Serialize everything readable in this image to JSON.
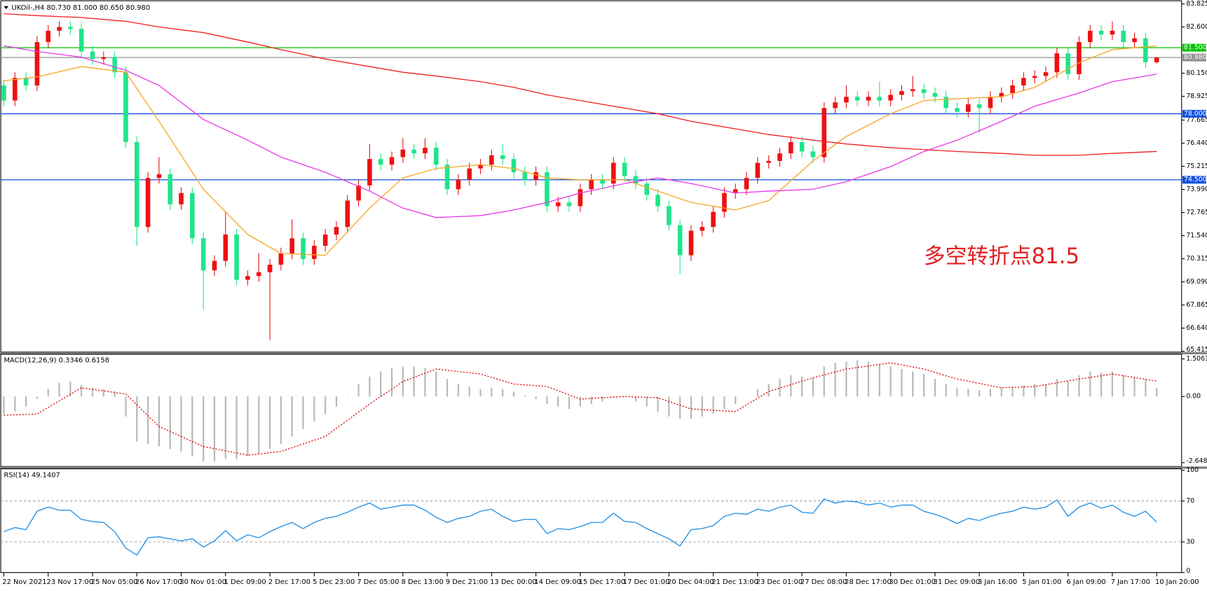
{
  "chart_data": [
    {
      "type": "candlestick",
      "title": "UKOil-,H4  80.730 81.000 80.650 80.980",
      "up_color": "#ee1111",
      "down_color": "#1ee58a",
      "xlim": [
        0,
        104
      ],
      "xticks": [
        {
          "value": 0,
          "label": "22 Nov 2021"
        },
        {
          "value": 4,
          "label": "23 Nov 17:00"
        },
        {
          "value": 8,
          "label": "25 Nov 05:00"
        },
        {
          "value": 12,
          "label": "26 Nov 17:00"
        },
        {
          "value": 16,
          "label": "30 Nov 01:00"
        },
        {
          "value": 20,
          "label": "1 Dec 09:00"
        },
        {
          "value": 24,
          "label": "2 Dec 17:00"
        },
        {
          "value": 28,
          "label": "5 Dec 23:00"
        },
        {
          "value": 32,
          "label": "7 Dec 05:00"
        },
        {
          "value": 36,
          "label": "8 Dec 13:00"
        },
        {
          "value": 40,
          "label": "9 Dec 21:00"
        },
        {
          "value": 44,
          "label": "13 Dec 00:00"
        },
        {
          "value": 48,
          "label": "14 Dec 09:00"
        },
        {
          "value": 52,
          "label": "15 Dec 17:00"
        },
        {
          "value": 56,
          "label": "17 Dec 01:00"
        },
        {
          "value": 60,
          "label": "20 Dec 04:00"
        },
        {
          "value": 64,
          "label": "21 Dec 13:00"
        },
        {
          "value": 68,
          "label": "23 Dec 01:00"
        },
        {
          "value": 72,
          "label": "27 Dec 08:00"
        },
        {
          "value": 76,
          "label": "28 Dec 17:00"
        },
        {
          "value": 80,
          "label": "30 Dec 01:00"
        },
        {
          "value": 84,
          "label": "31 Dec 09:00"
        },
        {
          "value": 88,
          "label": "3 Jan 16:00"
        },
        {
          "value": 92,
          "label": "5 Jan 01:00"
        },
        {
          "value": 96,
          "label": "6 Jan 09:00"
        },
        {
          "value": 100,
          "label": "7 Jan 17:00"
        },
        {
          "value": 104,
          "label": "10 Jan 20:00"
        }
      ],
      "ylim": [
        65.415,
        83.825
      ],
      "yticks": [
        83.825,
        {
          "value": 82.6,
          "label": "82.600"
        },
        {
          "value": 80.15,
          "label": "80.150"
        },
        78.925,
        77.665,
        {
          "value": 76.44,
          "label": "76.440"
        },
        75.215,
        {
          "value": 73.99,
          "label": "73.990"
        },
        72.765,
        {
          "value": 71.54,
          "label": "71.540"
        },
        70.315,
        {
          "value": 69.09,
          "label": "69.090"
        },
        67.865,
        {
          "value": 66.64,
          "label": "66.640"
        },
        65.415
      ],
      "open": [
        79.5,
        78.7,
        79.9,
        79.5,
        81.8,
        82.4,
        82.6,
        82.5,
        81.3,
        80.9,
        81.0,
        80.2,
        76.5,
        72.0,
        74.6,
        74.8,
        73.2,
        73.8,
        71.4,
        69.7,
        70.2,
        71.6,
        69.2,
        69.4,
        69.6,
        70.0,
        70.6,
        71.4,
        70.3,
        71.0,
        71.6,
        72.0,
        73.4,
        74.2,
        75.6,
        75.3,
        75.7,
        76.1,
        75.9,
        76.2,
        75.3,
        74.0,
        74.5,
        75.1,
        75.3,
        75.8,
        75.6,
        74.9,
        74.5,
        74.9,
        73.1,
        73.3,
        73.1,
        74.0,
        74.5,
        74.3,
        75.4,
        74.7,
        74.3,
        73.7,
        73.1,
        72.1,
        70.5,
        71.8,
        72.0,
        72.8,
        73.8,
        74.0,
        74.6,
        75.4,
        75.5,
        75.9,
        76.5,
        76.0,
        75.7,
        78.3,
        78.6,
        78.9,
        78.7,
        78.9,
        78.7,
        79.0,
        79.2,
        79.3,
        79.1,
        78.9,
        78.3,
        78.1,
        78.5,
        78.3,
        78.9,
        79.1,
        79.5,
        79.9,
        80.0,
        80.2,
        81.2,
        80.1,
        81.8,
        82.4,
        82.2,
        82.4,
        81.8,
        82.0,
        80.73
      ],
      "high": [
        79.8,
        80.2,
        80.2,
        82.1,
        82.7,
        82.9,
        82.9,
        82.8,
        81.6,
        81.3,
        81.3,
        80.5,
        76.8,
        74.9,
        75.7,
        75.1,
        74.1,
        74.1,
        71.7,
        70.5,
        72.8,
        71.9,
        69.7,
        70.6,
        70.3,
        70.9,
        72.4,
        71.7,
        71.3,
        71.9,
        72.3,
        73.7,
        74.5,
        76.4,
        75.9,
        76.0,
        76.7,
        76.4,
        76.7,
        76.5,
        75.6,
        74.8,
        75.4,
        75.6,
        76.1,
        76.4,
        75.9,
        75.2,
        75.2,
        75.2,
        73.6,
        73.6,
        74.3,
        74.8,
        74.8,
        75.7,
        75.7,
        75.0,
        74.6,
        74.0,
        73.4,
        72.4,
        72.1,
        72.3,
        73.1,
        74.1,
        74.3,
        74.9,
        75.7,
        75.8,
        76.2,
        76.8,
        76.8,
        76.3,
        78.6,
        78.9,
        79.5,
        79.2,
        79.2,
        79.7,
        79.3,
        79.5,
        80.0,
        79.6,
        79.4,
        79.2,
        78.6,
        78.8,
        78.8,
        79.2,
        79.4,
        79.8,
        80.2,
        80.3,
        80.5,
        81.5,
        81.5,
        82.1,
        82.7,
        82.7,
        82.9,
        82.7,
        82.3,
        82.3,
        81.0
      ],
      "low": [
        78.4,
        78.4,
        79.2,
        79.2,
        81.5,
        82.1,
        82.2,
        81.0,
        80.6,
        80.6,
        79.9,
        76.2,
        71.0,
        71.7,
        74.3,
        72.9,
        72.9,
        71.1,
        67.6,
        69.4,
        69.9,
        68.9,
        68.9,
        69.1,
        66.0,
        69.7,
        70.3,
        70.0,
        70.0,
        70.7,
        71.3,
        71.7,
        73.1,
        73.9,
        75.0,
        75.0,
        75.4,
        75.6,
        75.6,
        75.0,
        73.7,
        73.7,
        74.2,
        74.8,
        75.0,
        75.3,
        74.6,
        74.2,
        74.2,
        72.8,
        72.8,
        72.8,
        72.8,
        73.7,
        74.0,
        74.0,
        74.4,
        74.0,
        73.4,
        72.8,
        71.8,
        69.5,
        70.2,
        71.5,
        71.7,
        72.5,
        73.5,
        73.7,
        74.3,
        75.1,
        75.2,
        75.6,
        75.7,
        75.4,
        75.4,
        78.0,
        78.3,
        78.4,
        78.4,
        78.4,
        78.4,
        78.7,
        78.9,
        78.8,
        78.6,
        78.0,
        77.8,
        77.8,
        77.0,
        78.0,
        78.6,
        78.8,
        79.2,
        79.6,
        79.7,
        79.9,
        79.8,
        79.8,
        81.5,
        81.9,
        81.9,
        81.5,
        81.5,
        80.43,
        80.65
      ],
      "close": [
        78.7,
        79.9,
        79.5,
        81.8,
        82.4,
        82.6,
        82.5,
        81.3,
        80.9,
        81.0,
        80.2,
        76.5,
        72.0,
        74.6,
        74.8,
        73.2,
        73.8,
        71.4,
        69.7,
        70.2,
        71.6,
        69.2,
        69.4,
        69.6,
        70.0,
        70.6,
        71.4,
        70.3,
        71.0,
        71.6,
        72.0,
        73.4,
        74.2,
        75.6,
        75.3,
        75.7,
        76.1,
        75.9,
        76.2,
        75.3,
        74.0,
        74.5,
        75.1,
        75.3,
        75.8,
        75.6,
        74.9,
        74.5,
        74.9,
        73.1,
        73.3,
        73.1,
        74.0,
        74.5,
        74.3,
        75.4,
        74.7,
        74.3,
        73.7,
        73.1,
        72.1,
        70.5,
        71.8,
        72.0,
        72.8,
        73.8,
        74.0,
        74.6,
        75.4,
        75.5,
        75.9,
        76.5,
        76.0,
        75.7,
        78.3,
        78.6,
        78.9,
        78.7,
        78.9,
        78.7,
        79.0,
        79.2,
        79.3,
        79.1,
        78.9,
        78.3,
        78.1,
        78.5,
        78.3,
        78.9,
        79.1,
        79.5,
        79.9,
        80.0,
        80.2,
        81.2,
        80.1,
        81.8,
        82.4,
        82.2,
        82.4,
        81.8,
        82.0,
        80.73,
        80.98
      ],
      "series": [
        {
          "color": "#f5a623",
          "x": [
            0,
            3,
            7,
            11,
            14,
            18,
            22,
            25,
            29,
            33,
            36,
            39,
            43,
            46,
            49,
            52,
            56,
            59,
            62,
            66,
            69,
            73,
            76,
            80,
            83,
            86,
            90,
            93,
            97,
            100,
            104
          ],
          "values": [
            79.75,
            79.95,
            80.5,
            80.2,
            77.6,
            74.0,
            71.6,
            70.6,
            70.5,
            73.0,
            74.6,
            75.1,
            75.3,
            75.1,
            74.6,
            74.5,
            74.5,
            73.9,
            73.3,
            72.9,
            73.4,
            75.5,
            76.8,
            78.0,
            78.7,
            78.8,
            78.9,
            79.4,
            80.7,
            81.4,
            81.6
          ]
        },
        {
          "color": "#e838e8",
          "x": [
            0,
            3,
            7,
            11,
            14,
            18,
            22,
            25,
            29,
            33,
            36,
            39,
            43,
            46,
            49,
            52,
            56,
            59,
            62,
            66,
            69,
            73,
            76,
            80,
            83,
            86,
            90,
            93,
            97,
            100,
            104
          ],
          "values": [
            81.6,
            81.3,
            81.0,
            80.3,
            79.5,
            77.7,
            76.6,
            75.7,
            74.9,
            73.9,
            73.0,
            72.5,
            72.6,
            72.9,
            73.3,
            73.8,
            74.3,
            74.6,
            74.3,
            73.8,
            73.9,
            74.0,
            74.4,
            75.2,
            76.0,
            76.6,
            77.6,
            78.4,
            79.1,
            79.7,
            80.1
          ]
        },
        {
          "color": "#f02020",
          "x": [
            0,
            3,
            7,
            11,
            14,
            18,
            22,
            25,
            29,
            33,
            36,
            39,
            43,
            46,
            49,
            52,
            56,
            59,
            62,
            66,
            69,
            73,
            76,
            80,
            83,
            86,
            90,
            93,
            97,
            100,
            104
          ],
          "values": [
            83.3,
            83.2,
            83.1,
            82.9,
            82.6,
            82.3,
            81.8,
            81.4,
            80.9,
            80.5,
            80.2,
            80.0,
            79.7,
            79.4,
            79.0,
            78.7,
            78.3,
            78.0,
            77.6,
            77.2,
            76.9,
            76.6,
            76.4,
            76.2,
            76.1,
            76.0,
            75.9,
            75.8,
            75.8,
            75.9,
            76.0
          ]
        }
      ],
      "hlines": [
        {
          "value": 81.5,
          "label": "81.500",
          "color": "#00c000"
        },
        {
          "value": 80.98,
          "label": "80.980",
          "color": "#909090"
        },
        {
          "value": 78,
          "label": "78.000",
          "color": "#1050e0"
        },
        {
          "value": 74.5,
          "label": "74.500",
          "color": "#1050e0"
        }
      ],
      "annotation": "多空转折点81.5",
      "annotation_color": "#e02020"
    },
    {
      "type": "macd",
      "title": "MACD(12,26,9) 0.3346 0.6158",
      "color": "#b8b8b8",
      "ylim": [
        -2.6487,
        1.5061
      ],
      "yticks": [
        1.5061,
        {
          "value": 0,
          "label": "0.00"
        },
        -2.6487
      ],
      "values": [
        -0.7,
        -0.6,
        -0.4,
        -0.1,
        0.3,
        0.55,
        0.6,
        0.45,
        0.35,
        0.3,
        0.2,
        -0.8,
        -1.8,
        -1.9,
        -2.0,
        -2.1,
        -2.2,
        -2.4,
        -2.6,
        -2.6,
        -2.5,
        -2.5,
        -2.4,
        -2.3,
        -2.1,
        -1.9,
        -1.6,
        -1.3,
        -1.0,
        -0.7,
        -0.4,
        0.0,
        0.5,
        0.8,
        1.0,
        1.15,
        1.2,
        1.2,
        1.15,
        1.0,
        0.7,
        0.5,
        0.4,
        0.3,
        0.35,
        0.3,
        0.2,
        0.05,
        -0.1,
        -0.3,
        -0.4,
        -0.5,
        -0.4,
        -0.3,
        -0.2,
        0.0,
        0.0,
        -0.2,
        -0.4,
        -0.6,
        -0.8,
        -0.9,
        -0.9,
        -0.8,
        -0.7,
        -0.5,
        -0.3,
        0.0,
        0.3,
        0.5,
        0.7,
        0.85,
        0.8,
        0.75,
        1.2,
        1.35,
        1.4,
        1.45,
        1.4,
        1.3,
        1.2,
        1.1,
        1.0,
        0.9,
        0.7,
        0.5,
        0.35,
        0.3,
        0.25,
        0.3,
        0.35,
        0.4,
        0.45,
        0.5,
        0.5,
        0.7,
        0.6,
        0.85,
        1.0,
        0.95,
        1.0,
        0.85,
        0.75,
        0.7,
        0.3346
      ],
      "signal": {
        "color": "#e01010",
        "x": [
          0,
          3,
          7,
          11,
          14,
          18,
          22,
          25,
          29,
          33,
          36,
          39,
          43,
          46,
          49,
          52,
          56,
          59,
          62,
          66,
          69,
          73,
          76,
          80,
          83,
          86,
          90,
          93,
          97,
          100,
          104
        ],
        "values": [
          -0.75,
          -0.7,
          0.35,
          0.1,
          -1.2,
          -2.0,
          -2.35,
          -2.2,
          -1.6,
          -0.3,
          0.6,
          1.1,
          0.9,
          0.5,
          0.4,
          -0.1,
          0.0,
          -0.05,
          -0.5,
          -0.6,
          0.2,
          0.75,
          1.1,
          1.35,
          1.1,
          0.7,
          0.35,
          0.4,
          0.7,
          0.9,
          0.62
        ]
      }
    },
    {
      "type": "line",
      "title": "RSI(14) 49.1407",
      "color": "#1e8fe6",
      "ylim": [
        0,
        100
      ],
      "yticks": [
        100,
        70,
        30,
        0
      ],
      "levels": [
        70,
        30
      ],
      "values": [
        40,
        44,
        42,
        60,
        64,
        61,
        61,
        52,
        50,
        49,
        40,
        24,
        17,
        34,
        35,
        33,
        31,
        33,
        25,
        31,
        41,
        31,
        37,
        34,
        40,
        45,
        49,
        43,
        49,
        53,
        55,
        59,
        64,
        68,
        62,
        64,
        66,
        66,
        61,
        54,
        49,
        53,
        55,
        60,
        62,
        55,
        50,
        52,
        52,
        38,
        43,
        42,
        45,
        49,
        49,
        58,
        50,
        49,
        43,
        38,
        33,
        26,
        42,
        43,
        46,
        55,
        58,
        57,
        62,
        60,
        64,
        66,
        59,
        58,
        72,
        68,
        70,
        69,
        66,
        68,
        64,
        66,
        66,
        60,
        57,
        53,
        48,
        53,
        51,
        55,
        58,
        60,
        64,
        62,
        64,
        71,
        55,
        64,
        68,
        63,
        66,
        59,
        55,
        60,
        49.1407
      ]
    }
  ]
}
